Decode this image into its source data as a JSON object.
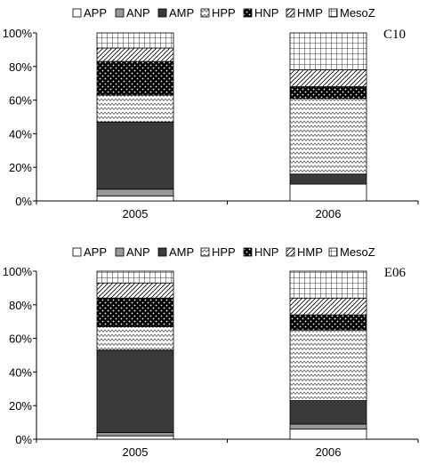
{
  "charts": [
    {
      "panel_label": "C10",
      "legend": [
        "APP",
        "ANP",
        "AMP",
        "HPP",
        "HNP",
        "HMP",
        "MesoZ"
      ],
      "ytick_labels": [
        "0%",
        "20%",
        "40%",
        "60%",
        "80%",
        "100%"
      ],
      "category_labels": [
        "2005",
        "2006"
      ]
    },
    {
      "panel_label": "E06",
      "legend": [
        "APP",
        "ANP",
        "AMP",
        "HPP",
        "HNP",
        "HMP",
        "MesoZ"
      ],
      "ytick_labels": [
        "0%",
        "20%",
        "40%",
        "60%",
        "80%",
        "100%"
      ],
      "category_labels": [
        "2005",
        "2006"
      ]
    }
  ],
  "chart_data": [
    {
      "type": "bar",
      "stacked": true,
      "percent": true,
      "panel_label": "C10",
      "categories": [
        "2005",
        "2006"
      ],
      "series": [
        {
          "name": "APP",
          "values": [
            3,
            10
          ],
          "pattern": "white"
        },
        {
          "name": "ANP",
          "values": [
            4,
            0
          ],
          "pattern": "gray"
        },
        {
          "name": "AMP",
          "values": [
            40,
            6
          ],
          "pattern": "dark"
        },
        {
          "name": "HPP",
          "values": [
            16,
            45
          ],
          "pattern": "zigzag"
        },
        {
          "name": "HNP",
          "values": [
            20,
            7
          ],
          "pattern": "dots"
        },
        {
          "name": "HMP",
          "values": [
            8,
            10
          ],
          "pattern": "diagonal"
        },
        {
          "name": "MesoZ",
          "values": [
            9,
            22
          ],
          "pattern": "grid"
        }
      ],
      "ylim": [
        0,
        100
      ],
      "legend_position": "top"
    },
    {
      "type": "bar",
      "stacked": true,
      "percent": true,
      "panel_label": "E06",
      "categories": [
        "2005",
        "2006"
      ],
      "series": [
        {
          "name": "APP",
          "values": [
            2,
            6
          ],
          "pattern": "white"
        },
        {
          "name": "ANP",
          "values": [
            2,
            3
          ],
          "pattern": "gray"
        },
        {
          "name": "AMP",
          "values": [
            49,
            14
          ],
          "pattern": "dark"
        },
        {
          "name": "HPP",
          "values": [
            14,
            42
          ],
          "pattern": "zigzag"
        },
        {
          "name": "HNP",
          "values": [
            17,
            9
          ],
          "pattern": "dots"
        },
        {
          "name": "HMP",
          "values": [
            9,
            10
          ],
          "pattern": "diagonal"
        },
        {
          "name": "MesoZ",
          "values": [
            7,
            16
          ],
          "pattern": "grid"
        }
      ],
      "ylim": [
        0,
        100
      ],
      "legend_position": "top"
    }
  ],
  "colors": {
    "dark": "#3a3a3a",
    "gray": "#999999",
    "white": "#ffffff",
    "stroke": "#000000"
  }
}
